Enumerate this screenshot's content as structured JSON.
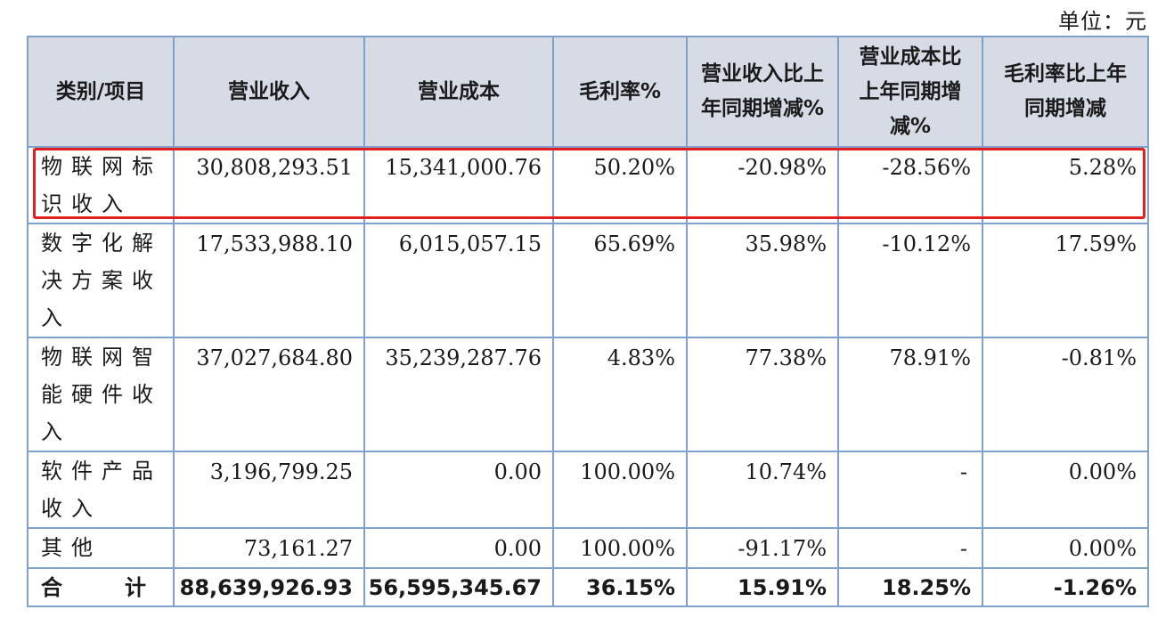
{
  "unit_label": "单位：元",
  "headers": {
    "category": "类别/项目",
    "revenue": "营业收入",
    "cost": "营业成本",
    "margin": "毛利率%",
    "revenue_change": "营业收入比上年同期增减%",
    "cost_change": "营业成本比上年同期增减%",
    "margin_change": "毛利率比上年同期增减"
  },
  "rows": [
    {
      "category": "物联网标识收入",
      "revenue": "30,808,293.51",
      "cost": "15,341,000.76",
      "margin": "50.20%",
      "revenue_change": "-20.98%",
      "cost_change": "-28.56%",
      "margin_change": "5.28%"
    },
    {
      "category": "数字化解决方案收入",
      "revenue": "17,533,988.10",
      "cost": "6,015,057.15",
      "margin": "65.69%",
      "revenue_change": "35.98%",
      "cost_change": "-10.12%",
      "margin_change": "17.59%"
    },
    {
      "category": "物联网智能硬件收入",
      "revenue": "37,027,684.80",
      "cost": "35,239,287.76",
      "margin": "4.83%",
      "revenue_change": "77.38%",
      "cost_change": "78.91%",
      "margin_change": "-0.81%"
    },
    {
      "category": "软件产品收入",
      "revenue": "3,196,799.25",
      "cost": "0.00",
      "margin": "100.00%",
      "revenue_change": "10.74%",
      "cost_change": "-",
      "margin_change": "0.00%"
    },
    {
      "category": "其他",
      "revenue": "73,161.27",
      "cost": "0.00",
      "margin": "100.00%",
      "revenue_change": "-91.17%",
      "cost_change": "-",
      "margin_change": "0.00%"
    }
  ],
  "total": {
    "label_left": "合",
    "label_right": "计",
    "revenue": "88,639,926.93",
    "cost": "56,595,345.67",
    "margin": "36.15%",
    "revenue_change": "15.91%",
    "cost_change": "18.25%",
    "margin_change": "-1.26%"
  },
  "colors": {
    "header_bg": "#d6dbe6",
    "grid_border": "#7da1c9",
    "highlight_box": "#e02020"
  }
}
